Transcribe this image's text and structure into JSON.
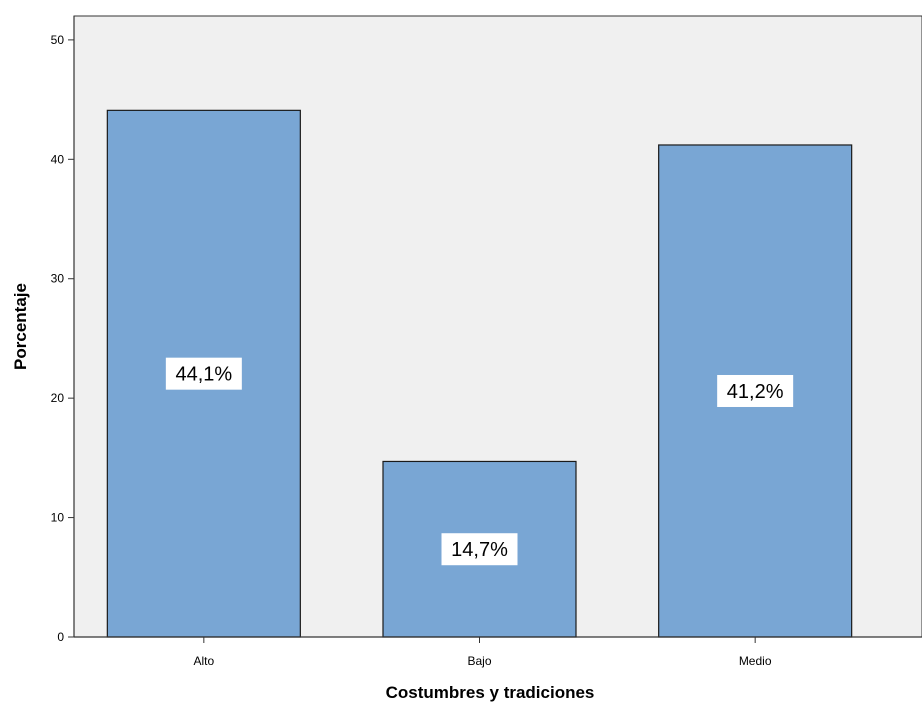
{
  "chart_data": {
    "type": "bar",
    "title": "",
    "xlabel": "Costumbres y tradiciones",
    "ylabel": "Porcentaje",
    "categories": [
      "Alto",
      "Bajo",
      "Medio"
    ],
    "values": [
      44.1,
      14.7,
      41.2
    ],
    "data_labels": [
      "44,1%",
      "14,7%",
      "41,2%"
    ],
    "ylim": [
      0,
      52
    ],
    "yticks": [
      0,
      10,
      20,
      30,
      40,
      50
    ],
    "grid": false,
    "legend": "none"
  },
  "colors": {
    "plot_background": "#f0f0f0",
    "bar_fill": "#79a6d4",
    "bar_stroke": "#1a1a1a",
    "label_background": "#ffffff",
    "axis": "#333333"
  }
}
